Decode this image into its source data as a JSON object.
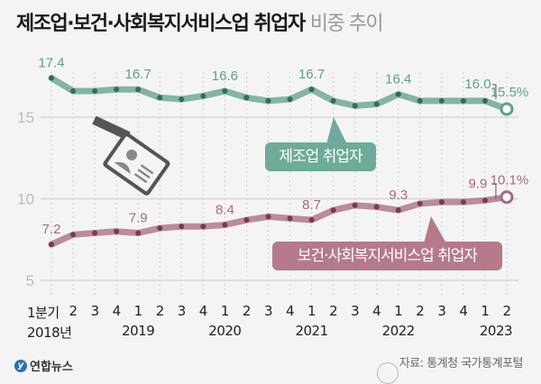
{
  "header": {
    "title_bold": "제조업·보건·사회복지서비스업 취업자",
    "title_light": "비중 추이"
  },
  "footer": {
    "logo_text": "연합뉴스",
    "source": "자료: 통계청 국가통계포털"
  },
  "colors": {
    "manufacturing": "#5f9f8c",
    "manufacturing_box": "#6eab9a",
    "health": "#a86a7c",
    "health_box": "#b57a8a",
    "grid": "#d6d6d6",
    "background": "#f4f4f4"
  },
  "chart_data": {
    "type": "line",
    "title": "제조업·보건·사회복지서비스업 취업자 비중 추이",
    "xlabel": "",
    "ylabel": "",
    "ylim": [
      5,
      17.5
    ],
    "yticks": [
      5,
      10,
      15
    ],
    "grid": true,
    "x": [
      "2018 Q1",
      "2018 Q2",
      "2018 Q3",
      "2018 Q4",
      "2019 Q1",
      "2019 Q2",
      "2019 Q3",
      "2019 Q4",
      "2020 Q1",
      "2020 Q2",
      "2020 Q3",
      "2020 Q4",
      "2021 Q1",
      "2021 Q2",
      "2021 Q3",
      "2021 Q4",
      "2022 Q1",
      "2022 Q2",
      "2022 Q3",
      "2022 Q4",
      "2023 Q1",
      "2023 Q2"
    ],
    "x_tick_quarters": [
      "1분기",
      "2",
      "3",
      "4",
      "1",
      "2",
      "3",
      "4",
      "1",
      "2",
      "3",
      "4",
      "1",
      "2",
      "3",
      "4",
      "1",
      "2",
      "3",
      "4",
      "1",
      "2"
    ],
    "x_tick_years": [
      {
        "index": 0,
        "label": "2018년"
      },
      {
        "index": 4,
        "label": "2019"
      },
      {
        "index": 8,
        "label": "2020"
      },
      {
        "index": 12,
        "label": "2021"
      },
      {
        "index": 16,
        "label": "2022"
      },
      {
        "index": 20,
        "label": "2023"
      }
    ],
    "series": [
      {
        "name": "제조업 취업자",
        "unit": "%",
        "values": [
          17.4,
          16.6,
          16.6,
          16.7,
          16.7,
          16.2,
          16.1,
          16.3,
          16.6,
          16.2,
          16.0,
          16.1,
          16.7,
          16.0,
          15.7,
          15.8,
          16.4,
          16.0,
          16.0,
          16.0,
          16.0,
          15.5
        ],
        "labels": [
          {
            "index": 0,
            "text": "17.4"
          },
          {
            "index": 4,
            "text": "16.7"
          },
          {
            "index": 8,
            "text": "16.6"
          },
          {
            "index": 12,
            "text": "16.7"
          },
          {
            "index": 16,
            "text": "16.4"
          },
          {
            "index": 20,
            "text": "16.0"
          },
          {
            "index": 21,
            "text": "15.5%"
          }
        ]
      },
      {
        "name": "보건·사회복지서비스업 취업자",
        "unit": "%",
        "values": [
          7.2,
          7.8,
          7.9,
          8.0,
          7.9,
          8.2,
          8.3,
          8.3,
          8.4,
          8.7,
          8.9,
          8.8,
          8.7,
          9.3,
          9.6,
          9.5,
          9.3,
          9.7,
          9.8,
          9.8,
          9.9,
          10.1
        ],
        "labels": [
          {
            "index": 0,
            "text": "7.2"
          },
          {
            "index": 4,
            "text": "7.9"
          },
          {
            "index": 8,
            "text": "8.4"
          },
          {
            "index": 12,
            "text": "8.7"
          },
          {
            "index": 16,
            "text": "9.3"
          },
          {
            "index": 20,
            "text": "9.9"
          },
          {
            "index": 21,
            "text": "10.1%"
          }
        ]
      }
    ]
  }
}
